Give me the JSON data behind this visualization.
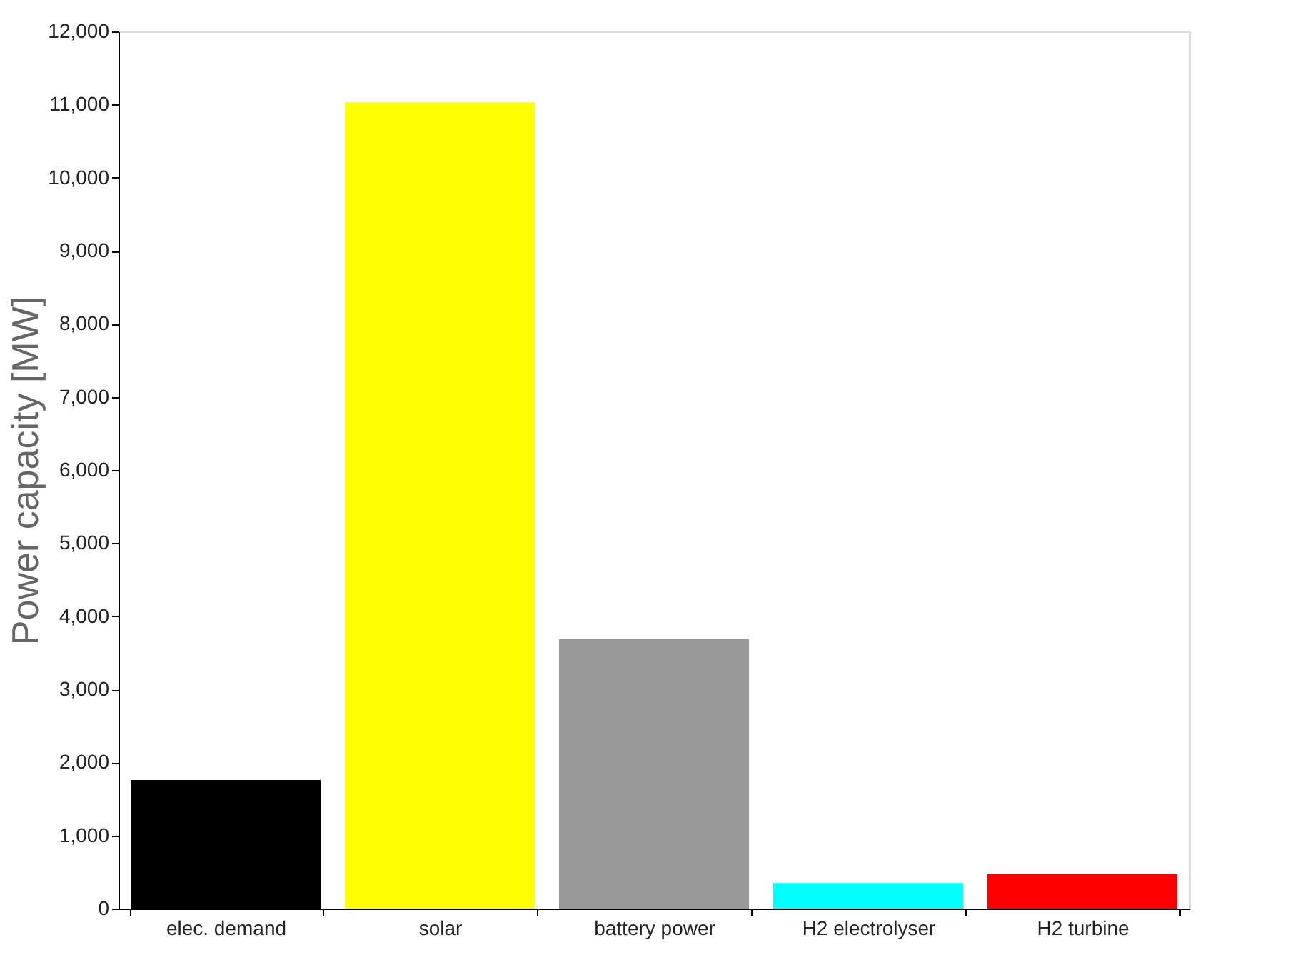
{
  "chart_data": {
    "type": "bar",
    "ylabel": "Power capacity [MW]",
    "categories": [
      "elec. demand",
      "solar",
      "battery power",
      "H2 electrolyser",
      "H2 turbine"
    ],
    "values": [
      1760,
      11030,
      3690,
      350,
      470
    ],
    "colors": [
      "#000000",
      "#ffff00",
      "#999999",
      "#00ffff",
      "#ff0000"
    ],
    "ylim": [
      0,
      12000
    ],
    "yticks": [
      {
        "value": 0,
        "label": "0"
      },
      {
        "value": 1000,
        "label": "1,000"
      },
      {
        "value": 2000,
        "label": "2,000"
      },
      {
        "value": 3000,
        "label": "3,000"
      },
      {
        "value": 4000,
        "label": "4,000"
      },
      {
        "value": 5000,
        "label": "5,000"
      },
      {
        "value": 6000,
        "label": "6,000"
      },
      {
        "value": 7000,
        "label": "7,000"
      },
      {
        "value": 8000,
        "label": "8,000"
      },
      {
        "value": 9000,
        "label": "9,000"
      },
      {
        "value": 10000,
        "label": "10,000"
      },
      {
        "value": 11000,
        "label": "11,000"
      },
      {
        "value": 12000,
        "label": "12,000"
      }
    ],
    "grid": false
  }
}
